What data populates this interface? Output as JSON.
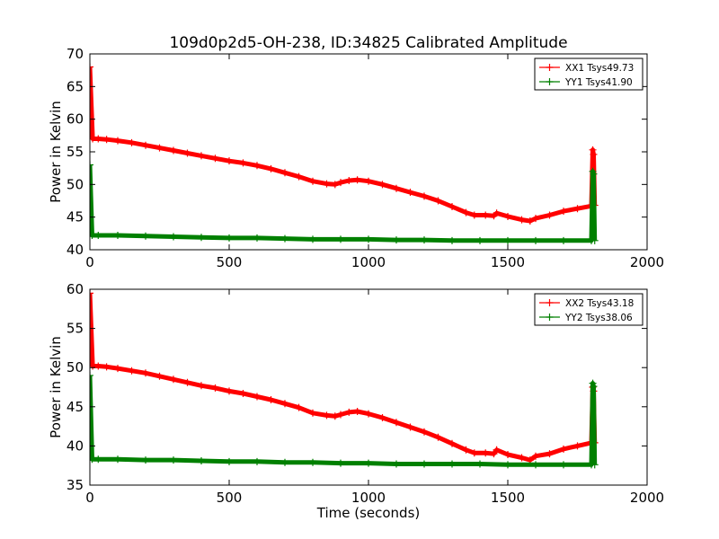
{
  "figure": {
    "title": "109d0p2d5-OH-238, ID:34825 Calibrated Amplitude"
  },
  "chart_data": [
    {
      "type": "line",
      "xlabel": "",
      "ylabel": "Power in Kelvin",
      "xlim": [
        0,
        2000
      ],
      "ylim": [
        40,
        70
      ],
      "xticks": [
        0,
        500,
        1000,
        1500,
        2000
      ],
      "yticks": [
        40,
        45,
        50,
        55,
        60,
        65,
        70
      ],
      "legend_position": "top-right",
      "grid": false,
      "series": [
        {
          "name": "XX1 Tsys49.73",
          "color": "#ff0000",
          "x": [
            0,
            10,
            30,
            60,
            100,
            150,
            200,
            250,
            300,
            350,
            400,
            450,
            500,
            550,
            600,
            650,
            700,
            750,
            800,
            850,
            880,
            900,
            930,
            960,
            1000,
            1050,
            1100,
            1150,
            1200,
            1250,
            1300,
            1350,
            1380,
            1420,
            1450,
            1460,
            1500,
            1550,
            1580,
            1600,
            1650,
            1700,
            1750,
            1800,
            1805,
            1808,
            1812
          ],
          "y": [
            68.0,
            57.0,
            57.0,
            56.9,
            56.7,
            56.4,
            56.0,
            55.6,
            55.2,
            54.8,
            54.4,
            54.0,
            53.6,
            53.3,
            52.9,
            52.4,
            51.8,
            51.2,
            50.5,
            50.1,
            50.0,
            50.3,
            50.6,
            50.7,
            50.5,
            50.0,
            49.4,
            48.8,
            48.2,
            47.5,
            46.6,
            45.7,
            45.3,
            45.3,
            45.2,
            45.6,
            45.1,
            44.6,
            44.4,
            44.8,
            45.3,
            45.9,
            46.3,
            46.7,
            55.3,
            54.6,
            46.8
          ]
        },
        {
          "name": "YY1 Tsys41.90",
          "color": "#008000",
          "x": [
            0,
            8,
            30,
            100,
            200,
            300,
            400,
            500,
            600,
            700,
            800,
            900,
            1000,
            1100,
            1200,
            1300,
            1400,
            1500,
            1600,
            1700,
            1800,
            1805,
            1808,
            1812
          ],
          "y": [
            53.0,
            42.2,
            42.2,
            42.2,
            42.1,
            42.0,
            41.9,
            41.8,
            41.8,
            41.7,
            41.6,
            41.6,
            41.6,
            41.5,
            41.5,
            41.4,
            41.4,
            41.4,
            41.4,
            41.4,
            41.4,
            52.0,
            51.6,
            41.4
          ]
        }
      ]
    },
    {
      "type": "line",
      "xlabel": "Time (seconds)",
      "ylabel": "Power in Kelvin",
      "xlim": [
        0,
        2000
      ],
      "ylim": [
        35,
        60
      ],
      "xticks": [
        0,
        500,
        1000,
        1500,
        2000
      ],
      "yticks": [
        35,
        40,
        45,
        50,
        55,
        60
      ],
      "legend_position": "top-right",
      "grid": false,
      "series": [
        {
          "name": "XX2 Tsys43.18",
          "color": "#ff0000",
          "x": [
            0,
            10,
            30,
            60,
            100,
            150,
            200,
            250,
            300,
            350,
            400,
            450,
            500,
            550,
            600,
            650,
            700,
            750,
            800,
            850,
            880,
            900,
            930,
            960,
            1000,
            1050,
            1100,
            1150,
            1200,
            1250,
            1300,
            1350,
            1380,
            1420,
            1450,
            1460,
            1500,
            1550,
            1580,
            1600,
            1650,
            1700,
            1750,
            1800,
            1805,
            1808,
            1812
          ],
          "y": [
            59.5,
            50.2,
            50.2,
            50.1,
            49.9,
            49.6,
            49.3,
            48.9,
            48.5,
            48.1,
            47.7,
            47.4,
            47.0,
            46.7,
            46.3,
            45.9,
            45.4,
            44.9,
            44.2,
            43.9,
            43.8,
            44.0,
            44.3,
            44.4,
            44.1,
            43.6,
            43.0,
            42.4,
            41.8,
            41.1,
            40.3,
            39.5,
            39.1,
            39.1,
            39.0,
            39.5,
            38.9,
            38.5,
            38.2,
            38.7,
            39.0,
            39.6,
            40.0,
            40.4,
            47.5,
            47.0,
            40.4
          ]
        },
        {
          "name": "YY2 Tsys38.06",
          "color": "#008000",
          "x": [
            0,
            8,
            30,
            100,
            200,
            300,
            400,
            500,
            600,
            700,
            800,
            900,
            1000,
            1100,
            1200,
            1300,
            1400,
            1500,
            1600,
            1700,
            1800,
            1805,
            1808,
            1812
          ],
          "y": [
            49.0,
            38.3,
            38.3,
            38.3,
            38.2,
            38.2,
            38.1,
            38.0,
            38.0,
            37.9,
            37.9,
            37.8,
            37.8,
            37.7,
            37.7,
            37.7,
            37.7,
            37.6,
            37.6,
            37.6,
            37.6,
            48.0,
            47.6,
            37.6
          ]
        }
      ]
    }
  ]
}
